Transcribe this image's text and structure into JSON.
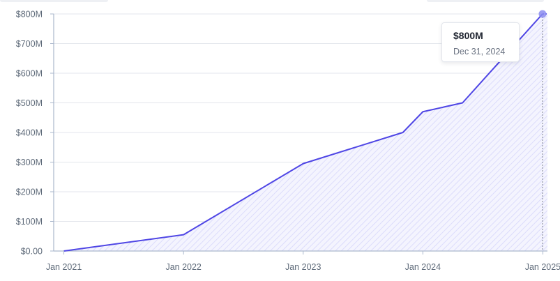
{
  "colors": {
    "line": "#4f46e5",
    "area": "#6366f1",
    "grid": "#e3e6ec",
    "axis": "#aab7cc",
    "marker": "#8b8cf0"
  },
  "chart_data": {
    "type": "area",
    "x_dates": [
      "2021-01-01",
      "2022-01-01",
      "2023-01-01",
      "2023-11-01",
      "2024-01-01",
      "2024-05-01",
      "2024-12-31"
    ],
    "y": [
      0,
      55,
      295,
      400,
      470,
      500,
      800
    ],
    "y_unit": "$M",
    "ylim": [
      0,
      800
    ],
    "xlim": [
      "2020-12-01",
      "2025-01-15"
    ],
    "y_ticks": [
      0,
      100,
      200,
      300,
      400,
      500,
      600,
      700,
      800
    ],
    "y_tick_labels": [
      "$0.00",
      "$100M",
      "$200M",
      "$300M",
      "$400M",
      "$500M",
      "$600M",
      "$700M",
      "$800M"
    ],
    "x_ticks": [
      "2021-01-01",
      "2022-01-01",
      "2023-01-01",
      "2024-01-01",
      "2025-01-01"
    ],
    "x_tick_labels": [
      "Jan 2021",
      "Jan 2022",
      "Jan 2023",
      "Jan 2024",
      "Jan 2025"
    ],
    "grid": true,
    "highlight": {
      "date": "2024-12-31",
      "value": 800
    }
  },
  "tooltip": {
    "value": "$800M",
    "date": "Dec 31, 2024"
  }
}
